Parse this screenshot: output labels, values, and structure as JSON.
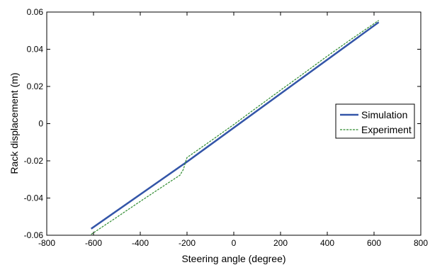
{
  "chart_data": {
    "type": "line",
    "xlabel": "Steering angle (degree)",
    "ylabel": "Rack displacement (m)",
    "xlim": [
      -800,
      800
    ],
    "ylim": [
      -0.06,
      0.06
    ],
    "xticks": [
      -800,
      -600,
      -400,
      -200,
      0,
      200,
      400,
      600,
      800
    ],
    "yticks": [
      -0.06,
      -0.04,
      -0.02,
      0,
      0.02,
      0.04,
      0.06
    ],
    "xtick_labels": [
      "-800",
      "-600",
      "-400",
      "-200",
      "0",
      "200",
      "400",
      "600",
      "800"
    ],
    "ytick_labels": [
      "-0.06",
      "-0.04",
      "-0.02",
      "0",
      "0.02",
      "0.04",
      "0.06"
    ],
    "grid": false,
    "legend_position": "right",
    "series": [
      {
        "name": "Simulation",
        "color": "#3355a8",
        "style": "solid",
        "x": [
          -610,
          -200,
          620
        ],
        "y": [
          -0.0565,
          -0.0205,
          0.0545
        ]
      },
      {
        "name": "Experiment",
        "color": "#2e8b2e",
        "style": "dashed",
        "x": [
          -610,
          -500,
          -400,
          -300,
          -230,
          -215,
          -205,
          -200,
          -100,
          0,
          100,
          200,
          300,
          400,
          500,
          620
        ],
        "y": [
          -0.0595,
          -0.0503,
          -0.0418,
          -0.0335,
          -0.0277,
          -0.0245,
          -0.02,
          -0.0182,
          -0.0094,
          -0.0005,
          0.0088,
          0.018,
          0.0271,
          0.0363,
          0.0452,
          0.0555
        ]
      }
    ]
  }
}
